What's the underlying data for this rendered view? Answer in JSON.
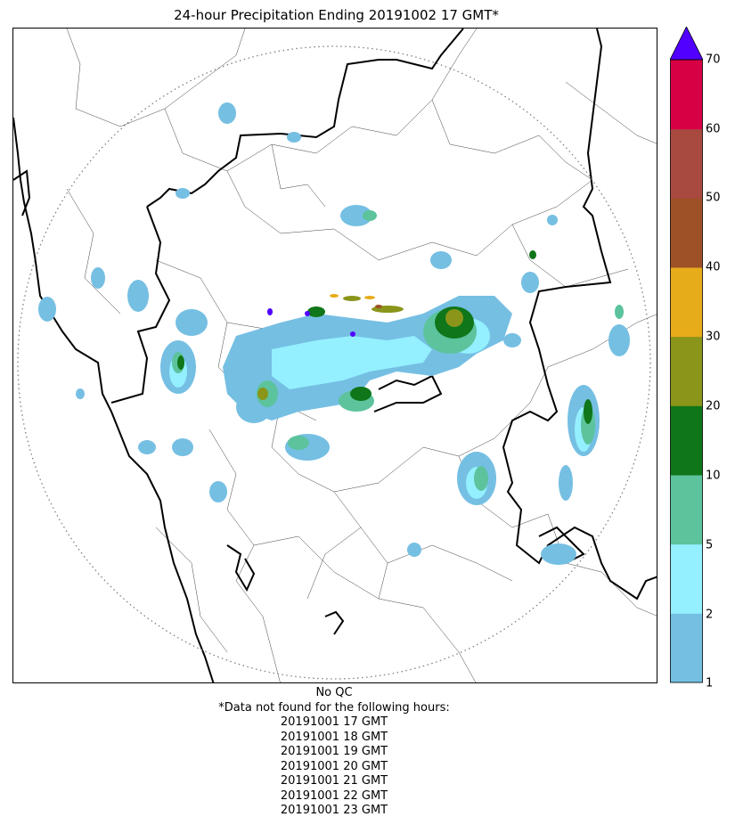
{
  "title": "24-hour Precipitation Ending 20191002 17 GMT*",
  "colorbar": {
    "levels": [
      "1",
      "2",
      "5",
      "10",
      "20",
      "30",
      "40",
      "50",
      "60",
      "70"
    ],
    "colors": [
      "#75BFE3",
      "#94EFFF",
      "#5CC39D",
      "#0F7619",
      "#8A951A",
      "#E7AC1A",
      "#9E5026",
      "#A84A40",
      "#D80045"
    ],
    "extend_color": "#5100FF"
  },
  "footnote": {
    "qc_note": "No QC",
    "missing_header": "*Data not found for the following hours:",
    "missing_hours": [
      "20191001 17 GMT",
      "20191001 18 GMT",
      "20191001 19 GMT",
      "20191001 20 GMT",
      "20191001 21 GMT",
      "20191001 22 GMT",
      "20191001 23 GMT"
    ]
  }
}
